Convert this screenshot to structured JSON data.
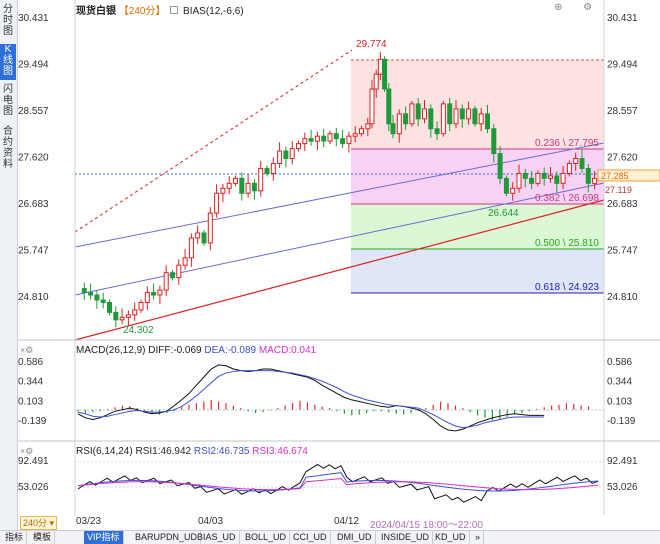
{
  "sidebar": {
    "tabs": [
      {
        "label": "分时图",
        "active": false
      },
      {
        "label": "K线图",
        "active": true
      },
      {
        "label": "闪电图",
        "active": false
      },
      {
        "label": "合约资料",
        "active": false
      }
    ]
  },
  "header": {
    "symbol": "现货白银",
    "period": "【240分】",
    "indicator": "BIAS(12,-6,6)"
  },
  "main_chart": {
    "y_ticks": [
      "30.431",
      "29.494",
      "28.557",
      "27.620",
      "26.683",
      "25.747",
      "24.810"
    ],
    "high_label": "29.774",
    "low_label": "24.302",
    "recent_low_label": "26.644",
    "current_price_1": "27.285",
    "current_price_2": "27.119",
    "fib_levels": [
      {
        "label": "0.236 \\ 27.795",
        "value": 27.795,
        "color": "#c43b86"
      },
      {
        "label": "0.382 \\ 26.698",
        "value": 26.698,
        "color": "#c43b86"
      },
      {
        "label": "0.500 \\ 25.810",
        "value": 25.81,
        "color": "#22aa22"
      },
      {
        "label": "0.618 \\ 24.923",
        "value": 24.923,
        "color": "#2222aa"
      }
    ]
  },
  "macd": {
    "title": "MACD(26,12,9)",
    "diff": "DIFF:-0.069",
    "dea": "DEA:-0.089",
    "macd": "MACD:0.041",
    "y_ticks": [
      "0.586",
      "0.344",
      "0.103",
      "-0.139"
    ]
  },
  "rsi": {
    "title": "RSI(6,14,24)",
    "rsi1": "RSI1:46.942",
    "rsi2": "RSI2:46.735",
    "rsi3": "RSI3:46.674",
    "y_ticks": [
      "92.491",
      "53.026"
    ]
  },
  "datebar": {
    "period_badge": "240分",
    "dates": [
      "03/23",
      "04/03",
      "04/12"
    ],
    "cursor": "2024/04/15 18:00～22:00"
  },
  "bottom_tabs": [
    "指标",
    "模板",
    "VIP指标",
    "BARUPDN_UD",
    "BIAS_UD",
    "BOLL_UD",
    "CCI_UD",
    "DMI_UD",
    "INSIDE_UD",
    "KD_UD",
    "»"
  ],
  "chart_data": {
    "type": "candlestick",
    "symbol": "现货白银",
    "period": "240分",
    "ylim": [
      24.3,
      30.43
    ],
    "annotations": {
      "high": 29.774,
      "low": 24.302,
      "recent_low": 26.644,
      "last": 27.285
    }
  },
  "colors": {
    "up": "#e02020",
    "down": "#1e9a3a",
    "accent": "#2f6fd6"
  }
}
